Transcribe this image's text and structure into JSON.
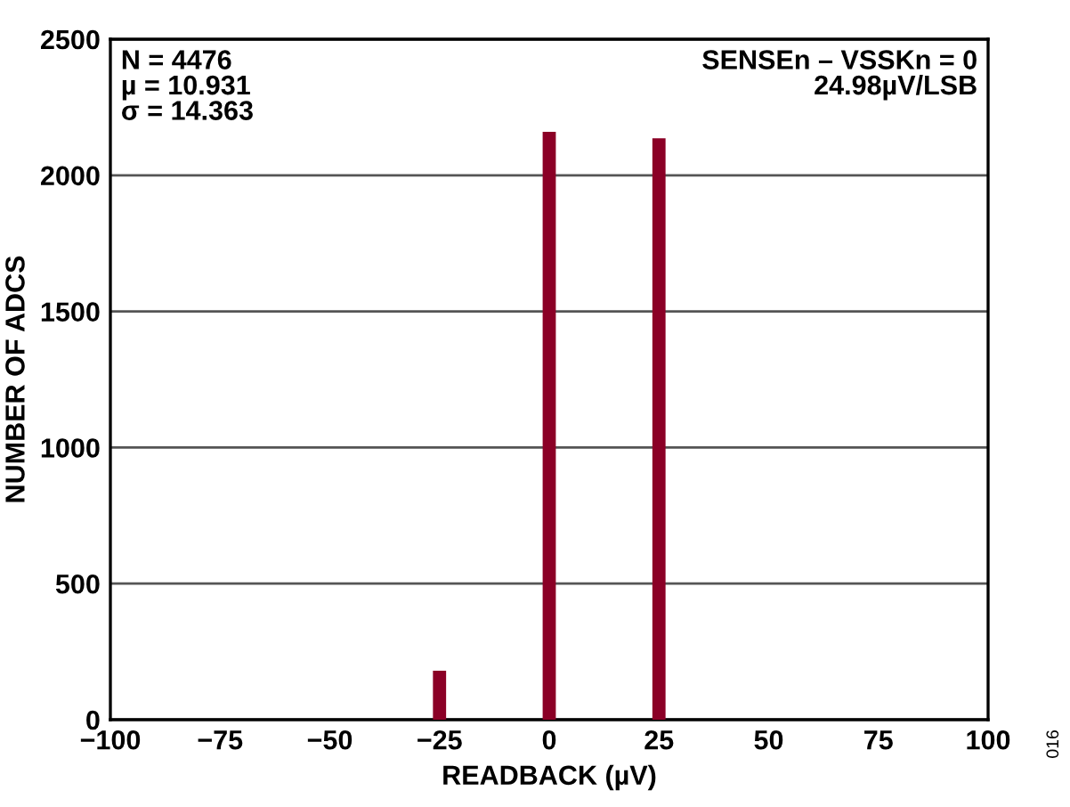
{
  "chart_data": {
    "type": "bar",
    "xlabel": "READBACK (µV)",
    "ylabel": "NUMBER OF ADCS",
    "x": [
      -25,
      0,
      25
    ],
    "series": [
      {
        "color": "#8b0026",
        "values": [
          180,
          2160,
          2136
        ]
      }
    ],
    "xlim": [
      -100,
      100
    ],
    "xticks": [
      {
        "value": -100,
        "label": "−100"
      },
      {
        "value": -75,
        "label": "−75"
      },
      {
        "value": -50,
        "label": "−50"
      },
      {
        "value": -25,
        "label": "−25"
      },
      0,
      25,
      50,
      75,
      100
    ],
    "ylim": [
      0,
      2500
    ],
    "yticks": [
      0,
      500,
      1000,
      1500,
      2000,
      2500
    ],
    "grid": "y",
    "legend": false,
    "annotations": [
      "N = 4476\nµ = 10.931\nσ = 14.363",
      "SENSEn – VSSKn = 0\n24.98µV/LSB",
      "016"
    ]
  }
}
